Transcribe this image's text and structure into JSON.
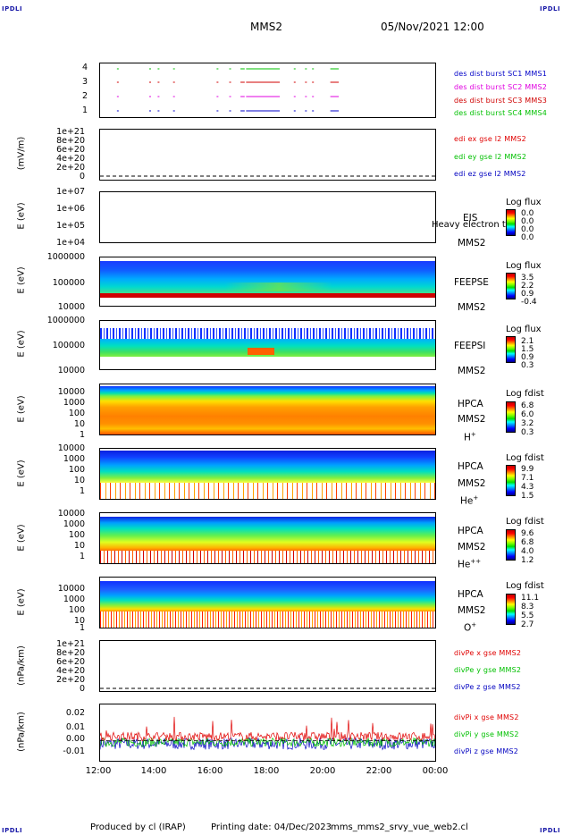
{
  "header": {
    "corner_left": "IPDLI",
    "corner_right": "IPDLI",
    "title": "MMS2",
    "date": "05/Nov/2021 12:00"
  },
  "footer": {
    "corner_left": "IPDLI",
    "corner_right": "IPDLI",
    "produced": "Produced by cl (IRAP)",
    "printing": "Printing date: 04/Dec/2023",
    "script": "mms_mms2_srvy_vue_web2.cl"
  },
  "colors": {
    "mms1": "#0000c8",
    "mms2": "#e000e0",
    "mms3": "#d00000",
    "mms4": "#00c000",
    "x_red": "#e00000",
    "y_green": "#00c000",
    "z_blue": "#0000c0"
  },
  "x_axis": {
    "ticks": [
      "12:00",
      "14:00",
      "16:00",
      "18:00",
      "20:00",
      "22:00",
      "00:00"
    ],
    "range_hours": [
      12,
      24
    ]
  },
  "panels": [
    {
      "id": "burst",
      "ytick_labels": [
        "4",
        "3",
        "2",
        "1"
      ],
      "legend": [
        "des dist burst SC1 MMS1",
        "des dist burst SC2 MMS2",
        "des dist burst SC3 MMS3",
        "des dist burst SC4 MMS4"
      ]
    },
    {
      "id": "edi",
      "ylabel": "(mV/m)",
      "ytick_labels": [
        "1e+21",
        "8e+20",
        "6e+20",
        "4e+20",
        "2e+20",
        "0"
      ],
      "legend": [
        "edi ex gse l2 MMS2",
        "edi ey gse l2 MMS2",
        "edi ez gse l2 MMS2"
      ]
    },
    {
      "id": "eis",
      "ylabel": "E (eV)",
      "ytick_labels": [
        "1e+07",
        "1e+06",
        "1e+05",
        "1e+04"
      ],
      "inst": [
        "EIS",
        "Heavy electron to",
        "MMS2"
      ],
      "cb_title": "Log flux",
      "cb_values": [
        "0.0",
        "0.0",
        "0.0",
        "0.0"
      ]
    },
    {
      "id": "feepse",
      "ylabel": "E (eV)",
      "ytick_labels": [
        "1000000",
        "100000",
        "10000"
      ],
      "inst": [
        "FEEPSE",
        "MMS2"
      ],
      "cb_title": "Log flux",
      "cb_values": [
        "3.5",
        "2.2",
        "0.9",
        "-0.4"
      ]
    },
    {
      "id": "feepsi",
      "ylabel": "E (eV)",
      "ytick_labels": [
        "1000000",
        "100000",
        "10000"
      ],
      "inst": [
        "FEEPSI",
        "MMS2"
      ],
      "cb_title": "Log flux",
      "cb_values": [
        "2.1",
        "1.5",
        "0.9",
        "0.3"
      ]
    },
    {
      "id": "hpca_h",
      "ylabel": "E (eV)",
      "ytick_labels": [
        "10000",
        "1000",
        "100",
        "10",
        "1"
      ],
      "inst": [
        "HPCA",
        "MMS2",
        "H"
      ],
      "species_sup": "+",
      "cb_title": "Log fdist",
      "cb_values": [
        "6.8",
        "6.0",
        "3.2",
        "0.3"
      ]
    },
    {
      "id": "hpca_he",
      "ylabel": "E (eV)",
      "ytick_labels": [
        "10000",
        "1000",
        "100",
        "10",
        "1"
      ],
      "inst": [
        "HPCA",
        "MMS2",
        "He"
      ],
      "species_sup": "+",
      "cb_title": "Log fdist",
      "cb_values": [
        "9.9",
        "7.1",
        "4.3",
        "1.5"
      ]
    },
    {
      "id": "hpca_hepp",
      "ylabel": "E (eV)",
      "ytick_labels": [
        "10000",
        "1000",
        "100",
        "10",
        "1"
      ],
      "inst": [
        "HPCA",
        "MMS2",
        "He"
      ],
      "species_sup": "++",
      "cb_title": "Log fdist",
      "cb_values": [
        "9.6",
        "6.8",
        "4.0",
        "1.2"
      ]
    },
    {
      "id": "hpca_o",
      "ylabel": "E (eV)",
      "ytick_labels": [
        "10000",
        "1000",
        "100",
        "10",
        "1"
      ],
      "inst": [
        "HPCA",
        "MMS2",
        "O"
      ],
      "species_sup": "+",
      "cb_title": "Log fdist",
      "cb_values": [
        "11.1",
        "8.3",
        "5.5",
        "2.7"
      ]
    },
    {
      "id": "divpe",
      "ylabel": "(nPa/km)",
      "ytick_labels": [
        "1e+21",
        "8e+20",
        "6e+20",
        "4e+20",
        "2e+20",
        "0"
      ],
      "legend": [
        "divPe x gse MMS2",
        "divPe y gse MMS2",
        "divPe z gse MMS2"
      ]
    },
    {
      "id": "divpi",
      "ylabel": "(nPa/km)",
      "ytick_labels": [
        "0.02",
        "0.01",
        "0.00",
        "-0.01"
      ],
      "legend": [
        "divPi x gse MMS2",
        "divPi y gse MMS2",
        "divPi z gse MMS2"
      ]
    }
  ],
  "chart_data": {
    "type": "line",
    "x_unit": "UT hours",
    "burst_intervals": [
      {
        "sc": 1,
        "intervals": [
          [
            12.6,
            12.65
          ],
          [
            13.75,
            13.8
          ],
          [
            14.05,
            14.1
          ],
          [
            14.6,
            14.65
          ],
          [
            16.15,
            16.2
          ],
          [
            16.6,
            16.65
          ],
          [
            17.0,
            17.15
          ],
          [
            17.2,
            18.4
          ],
          [
            18.9,
            18.95
          ],
          [
            19.3,
            19.35
          ],
          [
            19.55,
            19.6
          ],
          [
            20.2,
            20.5
          ]
        ]
      },
      {
        "sc": 2,
        "intervals": [
          [
            12.6,
            12.65
          ],
          [
            13.75,
            13.8
          ],
          [
            14.05,
            14.1
          ],
          [
            14.6,
            14.65
          ],
          [
            16.15,
            16.2
          ],
          [
            16.6,
            16.65
          ],
          [
            17.0,
            17.15
          ],
          [
            17.2,
            18.4
          ],
          [
            18.9,
            18.95
          ],
          [
            19.3,
            19.35
          ],
          [
            19.55,
            19.6
          ],
          [
            20.2,
            20.5
          ]
        ]
      },
      {
        "sc": 3,
        "intervals": [
          [
            12.6,
            12.65
          ],
          [
            13.75,
            13.8
          ],
          [
            14.05,
            14.1
          ],
          [
            14.6,
            14.65
          ],
          [
            16.15,
            16.2
          ],
          [
            16.6,
            16.65
          ],
          [
            17.0,
            17.15
          ],
          [
            17.2,
            18.4
          ],
          [
            18.9,
            18.95
          ],
          [
            19.3,
            19.35
          ],
          [
            19.55,
            19.6
          ],
          [
            20.2,
            20.5
          ]
        ]
      },
      {
        "sc": 4,
        "intervals": [
          [
            12.6,
            12.65
          ],
          [
            13.75,
            13.8
          ],
          [
            14.05,
            14.1
          ],
          [
            14.6,
            14.65
          ],
          [
            16.15,
            16.2
          ],
          [
            16.6,
            16.65
          ],
          [
            17.0,
            17.15
          ],
          [
            17.2,
            18.4
          ],
          [
            18.9,
            18.95
          ],
          [
            19.3,
            19.35
          ],
          [
            19.55,
            19.6
          ],
          [
            20.2,
            20.5
          ]
        ]
      }
    ],
    "divpi_ylim": [
      -0.015,
      0.025
    ],
    "divpi_series_level": {
      "x": 0.003,
      "y": -0.001,
      "z": -0.002
    }
  }
}
